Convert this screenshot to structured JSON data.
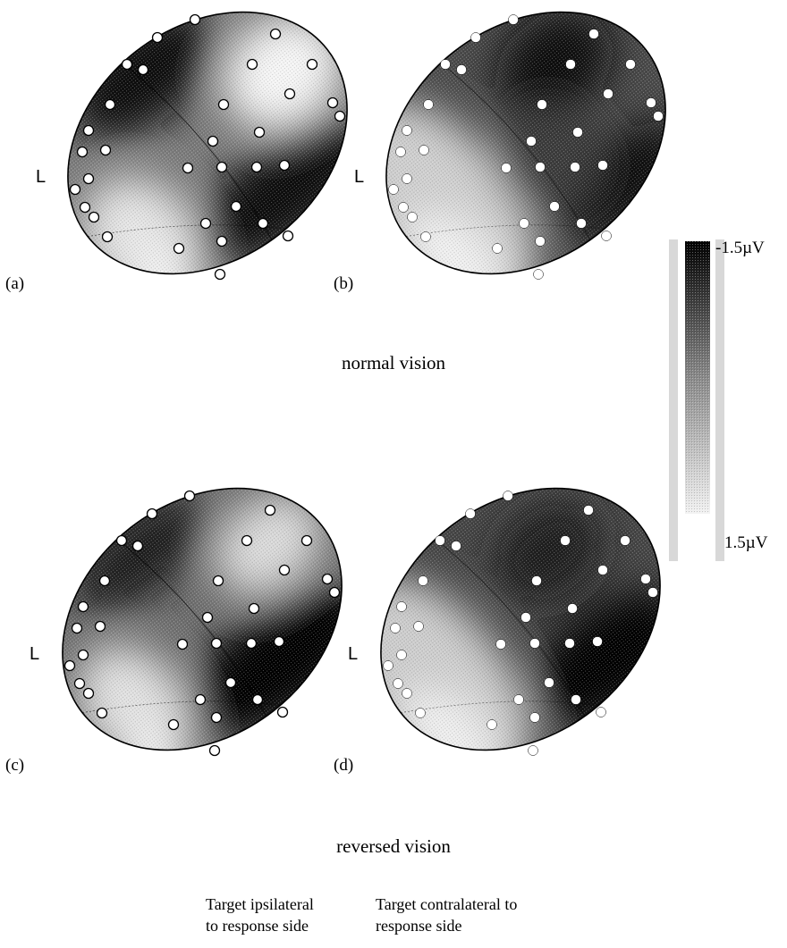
{
  "panels": [
    {
      "id": "a",
      "tag": "(a)",
      "side": "L",
      "electrode_style": "open",
      "pattern": "ipsilateral"
    },
    {
      "id": "b",
      "tag": "(b)",
      "side": "L",
      "electrode_style": "filled",
      "pattern": "contralateral"
    },
    {
      "id": "c",
      "tag": "(c)",
      "side": "L",
      "electrode_style": "open",
      "pattern": "ipsilateral"
    },
    {
      "id": "d",
      "tag": "(d)",
      "side": "L",
      "electrode_style": "filled",
      "pattern": "contralateral"
    }
  ],
  "rows": {
    "top": "normal vision",
    "bottom": "reversed vision"
  },
  "columns": {
    "left": [
      "Target ipsilateral",
      "to response side"
    ],
    "right": [
      "Target contralateral to",
      "response side"
    ]
  },
  "colorbar": {
    "max_label": "-1.5µV",
    "min_label": "1.5µV",
    "colors": [
      "#000000",
      "#ffffff"
    ]
  }
}
